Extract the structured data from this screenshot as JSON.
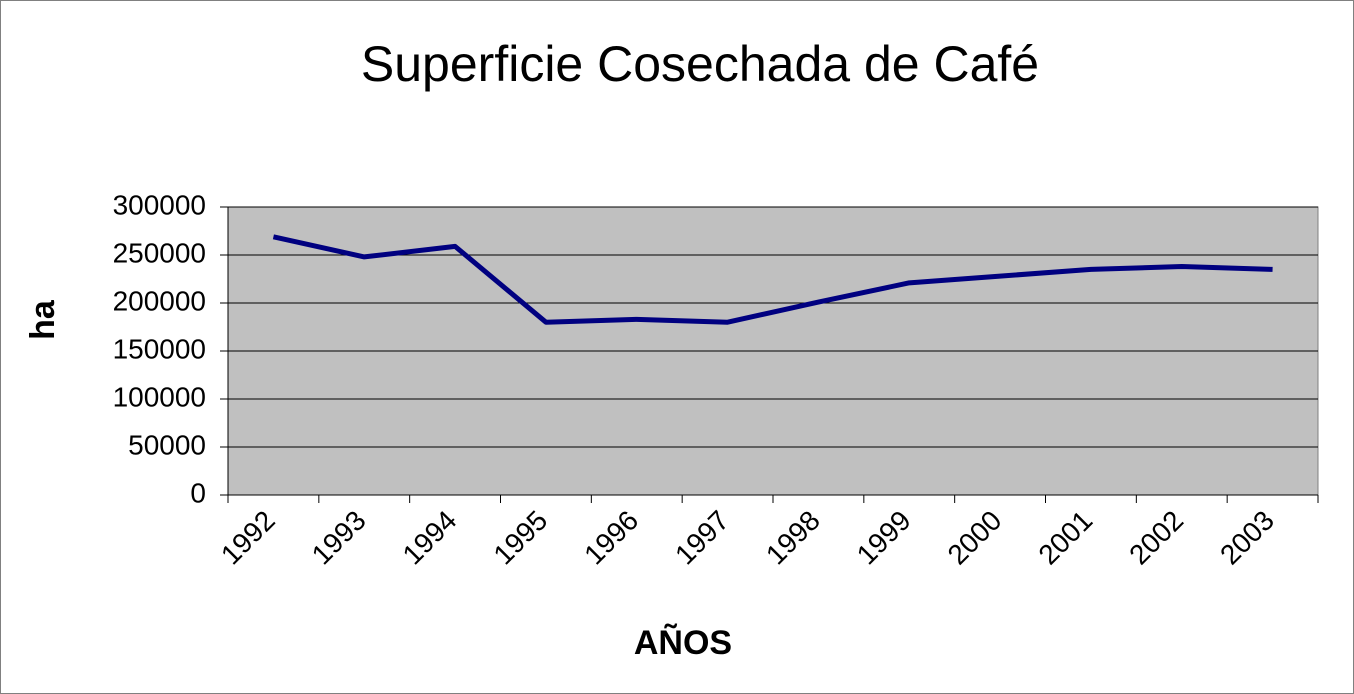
{
  "chart_data": {
    "type": "line",
    "title": "Superficie Cosechada de Café",
    "xlabel": "AÑOS",
    "ylabel": "ha",
    "categories": [
      "1992",
      "1993",
      "1994",
      "1995",
      "1996",
      "1997",
      "1998",
      "1999",
      "2000",
      "2001",
      "2002",
      "2003"
    ],
    "series": [
      {
        "name": "ha",
        "color": "#000080",
        "values": [
          269000,
          248000,
          259000,
          180000,
          183000,
          180000,
          201000,
          221000,
          228000,
          235000,
          238000,
          235000
        ]
      }
    ],
    "ylim": [
      0,
      300000
    ],
    "yticks": [
      0,
      50000,
      100000,
      150000,
      200000,
      250000,
      300000
    ],
    "grid": true
  }
}
